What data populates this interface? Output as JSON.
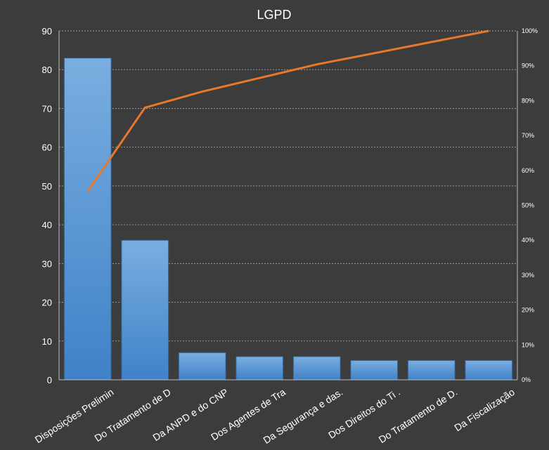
{
  "chart_data": {
    "type": "bar",
    "title": "LGPD",
    "categories": [
      "Disposições Prelimin",
      "Do Tratamento de D",
      "Da ANPD e do CNP",
      "Dos Agentes de Tra",
      "Da Segurança e das.",
      "Dos Direitos do Ti .",
      "Do Tratamento de D.",
      "Da Fiscalização"
    ],
    "values": [
      83,
      36,
      7,
      6,
      6,
      5,
      5,
      5
    ],
    "cumulative_percent": [
      54,
      78,
      82.6,
      86.5,
      90.4,
      93.6,
      96.8,
      100
    ],
    "ylim": [
      0,
      90
    ],
    "y_ticks": [
      "0",
      "10",
      "20",
      "30",
      "40",
      "50",
      "60",
      "70",
      "80",
      "90"
    ],
    "y2lim": [
      0,
      100
    ],
    "y2_ticks": [
      "0%",
      "10%",
      "20%",
      "30%",
      "40%",
      "50%",
      "60%",
      "70%",
      "80%",
      "90%",
      "100%"
    ],
    "grid": true,
    "bar_color_top": "#7aaee0",
    "bar_color_bottom": "#3f82c8",
    "bar_border_color": "#2f5f92",
    "line_color": "#e8782a",
    "background_color": "#3c3c3c",
    "grid_color": "#9a9a9a"
  }
}
